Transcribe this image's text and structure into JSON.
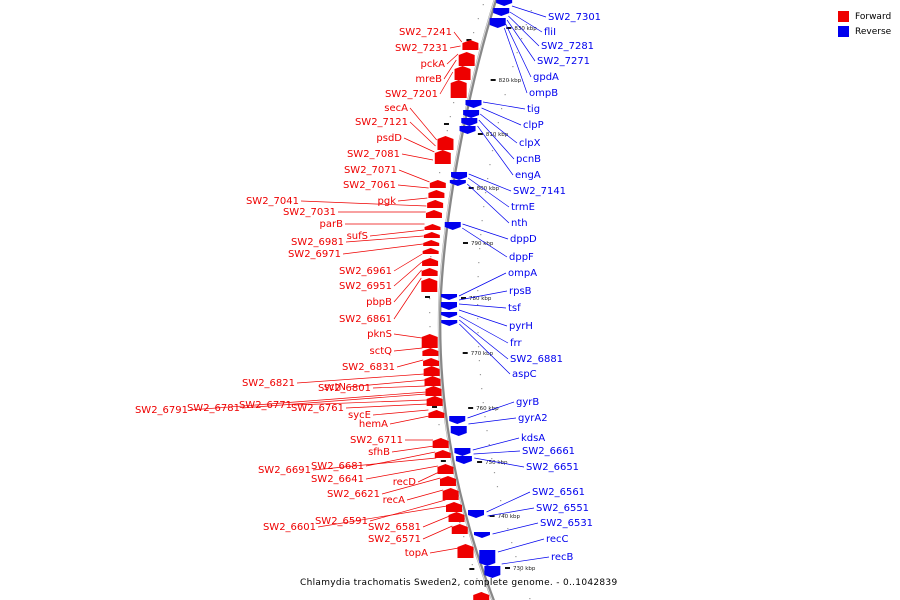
{
  "legend": {
    "forward_label": "Forward",
    "reverse_label": "Reverse",
    "forward_color": "#ee0000",
    "reverse_color": "#0000ee"
  },
  "caption": "Chlamydia trachomatis Sweden2, complete genome. - 0..1042839",
  "ticks": [
    "830 kbp",
    "820 kbp",
    "810 kbp",
    "800 kbp",
    "790 kbp",
    "780 kbp",
    "770 kbp",
    "760 kbp",
    "750 kbp",
    "740 kbp",
    "730 kbp"
  ],
  "forward_genes": [
    "SW2_7241",
    "SW2_7231",
    "pckA",
    "mreB",
    "SW2_7201",
    "secA",
    "SW2_7121",
    "psdD",
    "SW2_7081",
    "SW2_7071",
    "SW2_7061",
    "pgk",
    "SW2_7041",
    "SW2_7031",
    "parB",
    "sufS",
    "SW2_6981",
    "SW2_6971",
    "SW2_6961",
    "SW2_6951",
    "pbpB",
    "SW2_6861",
    "pknS",
    "sctQ",
    "SW2_6831",
    "SW2_6821",
    "sctN",
    "SW2_6801",
    "SW2_6791",
    "SW2_6781",
    "SW2_6771",
    "SW2_6761",
    "sycE",
    "hemA",
    "SW2_6711",
    "sfhB",
    "SW2_6681",
    "SW2_6691",
    "SW2_6641",
    "recD",
    "SW2_6621",
    "recA",
    "SW2_6591",
    "SW2_6601",
    "SW2_6581",
    "SW2_6571",
    "topA"
  ],
  "reverse_genes": [
    "SW2_7301",
    "fliI",
    "SW2_7281",
    "SW2_7271",
    "gpdA",
    "ompB",
    "tig",
    "clpP",
    "clpX",
    "pcnB",
    "engA",
    "SW2_7141",
    "trmE",
    "nth",
    "dppD",
    "dppF",
    "ompA",
    "rpsB",
    "tsf",
    "pyrH",
    "frr",
    "SW2_6881",
    "aspC",
    "gyrB",
    "gyrA2",
    "kdsA",
    "SW2_6661",
    "SW2_6651",
    "SW2_6561",
    "SW2_6551",
    "SW2_6531",
    "recC",
    "recB"
  ]
}
